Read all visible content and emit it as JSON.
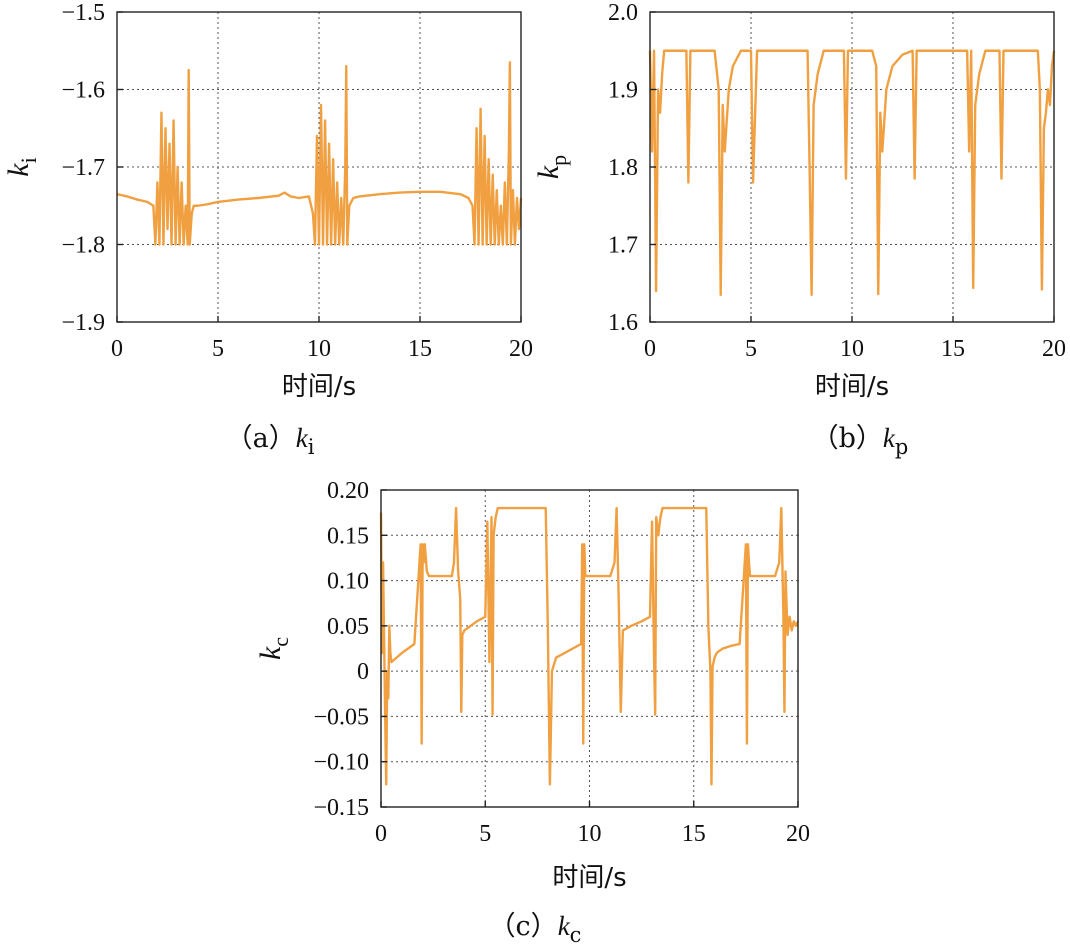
{
  "chart_data": [
    {
      "id": "a",
      "type": "line",
      "ylabel": "k",
      "ylabel_sub": "i",
      "xlabel": "时间/s",
      "caption_prefix": "（a）",
      "caption_k": "k",
      "caption_sub": "i",
      "xlim": [
        0,
        20
      ],
      "ylim": [
        -1.9,
        -1.5
      ],
      "xticks": [
        0,
        5,
        10,
        15,
        20
      ],
      "xtick_labels": [
        "0",
        "5",
        "10",
        "15",
        "20"
      ],
      "yticks": [
        -1.9,
        -1.8,
        -1.7,
        -1.6,
        -1.5
      ],
      "ytick_labels": [
        "−1.9",
        "−1.8",
        "−1.7",
        "−1.6",
        "−1.5"
      ],
      "grid": true,
      "color": "#F0A040",
      "series": [
        {
          "x": [
            0,
            0.5,
            1.0,
            1.5,
            1.8,
            1.9,
            2.0,
            2.1,
            2.2,
            2.3,
            2.4,
            2.5,
            2.6,
            2.7,
            2.8,
            2.9,
            3.0,
            3.1,
            3.2,
            3.3,
            3.4,
            3.5,
            3.55,
            3.6,
            3.7,
            3.8,
            4.0,
            4.5,
            5.0,
            6.0,
            7.0,
            8.0,
            8.3,
            8.6,
            9.0,
            9.5,
            9.7,
            9.8,
            9.9,
            10.0,
            10.1,
            10.2,
            10.3,
            10.4,
            10.5,
            10.6,
            10.7,
            10.8,
            10.9,
            11.0,
            11.1,
            11.2,
            11.3,
            11.35,
            11.4,
            11.5,
            11.7,
            12.0,
            13.0,
            14.0,
            15.0,
            16.0,
            17.0,
            17.4,
            17.6,
            17.7,
            17.8,
            17.9,
            18.0,
            18.1,
            18.2,
            18.3,
            18.4,
            18.5,
            18.6,
            18.7,
            18.8,
            18.9,
            19.0,
            19.1,
            19.2,
            19.3,
            19.4,
            19.45,
            19.5,
            19.6,
            19.7,
            19.8,
            19.9,
            20.0
          ],
          "y": [
            -1.735,
            -1.738,
            -1.742,
            -1.745,
            -1.75,
            -1.8,
            -1.72,
            -1.8,
            -1.63,
            -1.8,
            -1.65,
            -1.78,
            -1.67,
            -1.8,
            -1.64,
            -1.8,
            -1.7,
            -1.8,
            -1.72,
            -1.8,
            -1.75,
            -1.8,
            -1.575,
            -1.8,
            -1.76,
            -1.75,
            -1.75,
            -1.748,
            -1.745,
            -1.742,
            -1.74,
            -1.737,
            -1.733,
            -1.738,
            -1.74,
            -1.738,
            -1.76,
            -1.8,
            -1.66,
            -1.8,
            -1.62,
            -1.8,
            -1.64,
            -1.8,
            -1.67,
            -1.8,
            -1.69,
            -1.8,
            -1.72,
            -1.8,
            -1.74,
            -1.8,
            -1.7,
            -1.57,
            -1.8,
            -1.75,
            -1.74,
            -1.738,
            -1.735,
            -1.733,
            -1.732,
            -1.732,
            -1.735,
            -1.74,
            -1.75,
            -1.8,
            -1.65,
            -1.8,
            -1.625,
            -1.8,
            -1.66,
            -1.8,
            -1.69,
            -1.8,
            -1.71,
            -1.8,
            -1.73,
            -1.8,
            -1.75,
            -1.8,
            -1.72,
            -1.8,
            -1.68,
            -1.565,
            -1.8,
            -1.73,
            -1.8,
            -1.74,
            -1.78,
            -1.74
          ]
        }
      ]
    },
    {
      "id": "b",
      "type": "line",
      "ylabel": "k",
      "ylabel_sub": "p",
      "xlabel": "时间/s",
      "caption_prefix": "（b）",
      "caption_k": "k",
      "caption_sub": "p",
      "xlim": [
        0,
        20
      ],
      "ylim": [
        1.6,
        2.0
      ],
      "xticks": [
        0,
        5,
        10,
        15,
        20
      ],
      "xtick_labels": [
        "0",
        "5",
        "10",
        "15",
        "20"
      ],
      "yticks": [
        1.6,
        1.7,
        1.8,
        1.9,
        2.0
      ],
      "ytick_labels": [
        "1.6",
        "1.7",
        "1.8",
        "1.9",
        "2.0"
      ],
      "grid": true,
      "color": "#F0A040",
      "series": [
        {
          "x": [
            0,
            0.1,
            0.2,
            0.3,
            0.4,
            0.5,
            0.6,
            0.7,
            0.9,
            1.2,
            1.6,
            1.8,
            1.9,
            2.0,
            2.1,
            2.3,
            2.8,
            3.2,
            3.4,
            3.5,
            3.6,
            3.7,
            3.9,
            4.1,
            4.5,
            5.0,
            5.1,
            5.3,
            5.4,
            5.5,
            5.7,
            6.0,
            7.0,
            7.8,
            7.9,
            8.0,
            8.1,
            8.3,
            8.6,
            9.3,
            9.6,
            9.7,
            9.8,
            9.9,
            10.2,
            11.0,
            11.2,
            11.3,
            11.4,
            11.5,
            11.7,
            12.0,
            12.5,
            13.0,
            13.1,
            13.2,
            13.3,
            13.5,
            14.5,
            15.7,
            15.8,
            15.9,
            16.0,
            16.1,
            16.3,
            16.6,
            17.3,
            17.4,
            17.5,
            17.6,
            17.8,
            18.6,
            19.2,
            19.3,
            19.4,
            19.5,
            19.6,
            19.7,
            19.8,
            19.9,
            20.0
          ],
          "y": [
            1.95,
            1.82,
            1.95,
            1.64,
            1.9,
            1.87,
            1.92,
            1.95,
            1.95,
            1.95,
            1.95,
            1.95,
            1.78,
            1.95,
            1.95,
            1.95,
            1.95,
            1.95,
            1.9,
            1.635,
            1.88,
            1.82,
            1.9,
            1.93,
            1.95,
            1.95,
            1.78,
            1.95,
            1.95,
            1.95,
            1.95,
            1.95,
            1.95,
            1.95,
            1.8,
            1.635,
            1.88,
            1.92,
            1.95,
            1.95,
            1.95,
            1.785,
            1.95,
            1.95,
            1.95,
            1.95,
            1.93,
            1.636,
            1.87,
            1.82,
            1.9,
            1.93,
            1.945,
            1.95,
            1.785,
            1.95,
            1.95,
            1.95,
            1.95,
            1.95,
            1.82,
            1.95,
            1.644,
            1.88,
            1.92,
            1.95,
            1.95,
            1.785,
            1.95,
            1.95,
            1.95,
            1.95,
            1.95,
            1.9,
            1.642,
            1.85,
            1.87,
            1.9,
            1.88,
            1.93,
            1.95
          ]
        }
      ]
    },
    {
      "id": "c",
      "type": "line",
      "ylabel": "k",
      "ylabel_sub": "c",
      "xlabel": "时间/s",
      "caption_prefix": "（c）",
      "caption_k": "k",
      "caption_sub": "c",
      "xlim": [
        0,
        20
      ],
      "ylim": [
        -0.15,
        0.2
      ],
      "xticks": [
        0,
        5,
        10,
        15,
        20
      ],
      "xtick_labels": [
        "0",
        "5",
        "10",
        "15",
        "20"
      ],
      "yticks": [
        -0.15,
        -0.1,
        -0.05,
        0,
        0.05,
        0.1,
        0.15,
        0.2
      ],
      "ytick_labels": [
        "−0.15",
        "−0.10",
        "−0.05",
        "0",
        "0.05",
        "0.10",
        "0.15",
        "0.20"
      ],
      "grid": true,
      "color": "#F0A040",
      "series": [
        {
          "x": [
            0,
            0.05,
            0.1,
            0.2,
            0.25,
            0.3,
            0.35,
            0.4,
            0.45,
            0.5,
            0.6,
            0.8,
            1.0,
            1.3,
            1.6,
            1.9,
            1.95,
            2.0,
            2.05,
            2.1,
            2.2,
            2.3,
            2.35,
            2.4,
            2.6,
            3.0,
            3.4,
            3.5,
            3.6,
            3.7,
            3.8,
            3.85,
            3.9,
            4.0,
            4.3,
            4.6,
            5.0,
            5.1,
            5.2,
            5.3,
            5.35,
            5.4,
            5.5,
            5.6,
            5.7,
            5.8,
            6.0,
            7.0,
            7.7,
            7.9,
            8.0,
            8.1,
            8.2,
            8.4,
            8.8,
            9.2,
            9.6,
            9.65,
            9.7,
            9.75,
            9.8,
            9.9,
            10.1,
            10.3,
            11.0,
            11.2,
            11.3,
            11.4,
            11.5,
            11.6,
            12.0,
            12.5,
            12.9,
            13.0,
            13.1,
            13.15,
            13.2,
            13.3,
            13.4,
            13.5,
            13.6,
            13.7,
            14.0,
            15.0,
            15.4,
            15.6,
            15.7,
            15.8,
            15.85,
            15.9,
            16.0,
            16.1,
            16.2,
            16.4,
            16.8,
            17.2,
            17.5,
            17.55,
            17.6,
            17.65,
            17.7,
            17.8,
            18.0,
            18.3,
            18.9,
            19.1,
            19.2,
            19.3,
            19.35,
            19.4,
            19.5,
            19.6,
            19.7,
            19.8,
            19.9,
            20.0
          ],
          "y": [
            0.175,
            0.02,
            0.12,
            -0.05,
            -0.125,
            0.0,
            -0.03,
            0.05,
            0.02,
            0.01,
            0.012,
            0.016,
            0.02,
            0.025,
            0.03,
            0.14,
            -0.08,
            0.14,
            0.12,
            0.14,
            0.11,
            0.105,
            0.105,
            0.105,
            0.105,
            0.105,
            0.105,
            0.12,
            0.18,
            0.11,
            0.08,
            -0.045,
            0.04,
            0.045,
            0.05,
            0.055,
            0.06,
            0.165,
            0.01,
            0.17,
            -0.048,
            0.15,
            0.17,
            0.18,
            0.18,
            0.18,
            0.18,
            0.18,
            0.18,
            0.18,
            0.05,
            -0.125,
            0.0,
            0.015,
            0.02,
            0.025,
            0.03,
            0.14,
            -0.08,
            0.14,
            0.105,
            0.105,
            0.105,
            0.105,
            0.105,
            0.12,
            0.18,
            0.08,
            -0.045,
            0.045,
            0.05,
            0.055,
            0.06,
            0.165,
            0.01,
            -0.048,
            0.17,
            0.15,
            0.17,
            0.18,
            0.18,
            0.18,
            0.18,
            0.18,
            0.18,
            0.18,
            0.05,
            0.0,
            -0.125,
            0.005,
            0.015,
            0.02,
            0.022,
            0.025,
            0.028,
            0.03,
            0.14,
            -0.08,
            0.14,
            0.12,
            0.105,
            0.105,
            0.105,
            0.105,
            0.105,
            0.12,
            0.18,
            0.06,
            -0.045,
            0.11,
            0.04,
            0.06,
            0.045,
            0.055,
            0.05,
            0.055
          ]
        }
      ]
    }
  ]
}
